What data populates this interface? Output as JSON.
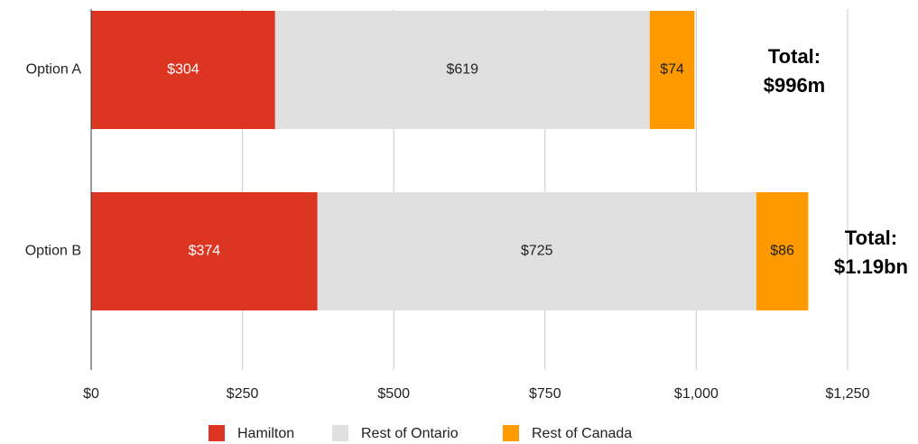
{
  "chart_data": {
    "type": "bar",
    "orientation": "horizontal",
    "stacked": true,
    "categories": [
      "Option A",
      "Option B"
    ],
    "series": [
      {
        "name": "Hamilton",
        "color": "#dc3522",
        "values": [
          304,
          374
        ],
        "value_labels": [
          "$304",
          "$374"
        ]
      },
      {
        "name": "Rest of Ontario",
        "color": "#e0e0e0",
        "values": [
          619,
          725
        ],
        "value_labels": [
          "$619",
          "$725"
        ]
      },
      {
        "name": "Rest of Canada",
        "color": "#ff9900",
        "values": [
          74,
          86
        ],
        "value_labels": [
          "$74",
          "$86"
        ]
      }
    ],
    "xlim": [
      0,
      1250
    ],
    "xticks": [
      {
        "value": 0,
        "label": "$0"
      },
      {
        "value": 250,
        "label": "$250"
      },
      {
        "value": 500,
        "label": "$500"
      },
      {
        "value": 750,
        "label": "$750"
      },
      {
        "value": 1000,
        "label": "$1,000"
      },
      {
        "value": 1250,
        "label": "$1,250"
      }
    ],
    "grid": true,
    "legend": "bottom",
    "annotations": [
      {
        "lines": [
          "Total:",
          "$996m"
        ]
      },
      {
        "lines": [
          "Total:",
          "$1.19bn"
        ]
      }
    ]
  }
}
